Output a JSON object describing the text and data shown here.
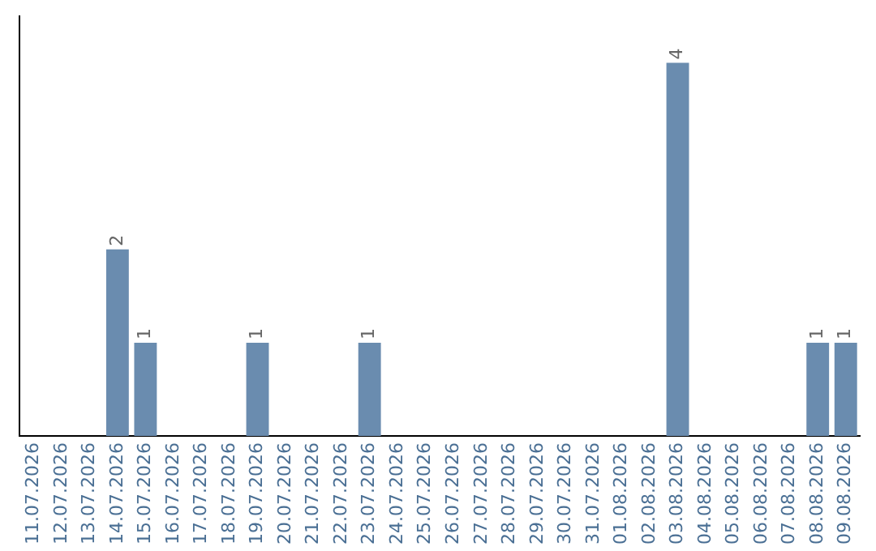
{
  "chart_data": {
    "type": "bar",
    "categories": [
      "11.07.2026",
      "12.07.2026",
      "13.07.2026",
      "14.07.2026",
      "15.07.2026",
      "16.07.2026",
      "17.07.2026",
      "18.07.2026",
      "19.07.2026",
      "20.07.2026",
      "21.07.2026",
      "22.07.2026",
      "23.07.2026",
      "24.07.2026",
      "25.07.2026",
      "26.07.2026",
      "27.07.2026",
      "28.07.2026",
      "29.07.2026",
      "30.07.2026",
      "31.07.2026",
      "01.08.2026",
      "02.08.2026",
      "03.08.2026",
      "04.08.2026",
      "05.08.2026",
      "06.08.2026",
      "07.08.2026",
      "08.08.2026",
      "09.08.2026"
    ],
    "values": [
      0,
      0,
      0,
      2,
      1,
      0,
      0,
      0,
      1,
      0,
      0,
      0,
      1,
      0,
      0,
      0,
      0,
      0,
      0,
      0,
      0,
      0,
      0,
      4,
      0,
      0,
      0,
      0,
      1,
      1
    ],
    "value_labels": [
      null,
      null,
      null,
      "2",
      "1",
      null,
      null,
      null,
      "1",
      null,
      null,
      null,
      "1",
      null,
      null,
      null,
      null,
      null,
      null,
      null,
      null,
      null,
      null,
      "4",
      null,
      null,
      null,
      null,
      "1",
      "1"
    ],
    "color": "#6a8caf",
    "tick_labels": "x",
    "grid": false,
    "legend": false
  }
}
